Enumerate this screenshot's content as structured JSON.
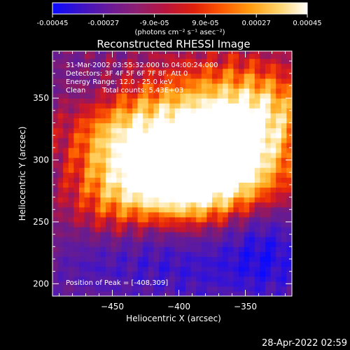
{
  "colorbar": {
    "ticks": [
      "-0.00045",
      "-0.00027",
      "-9.0e-05",
      "9.0e-05",
      "0.00027",
      "0.00045"
    ],
    "units": "(photons cm⁻² s⁻¹ asec⁻²)",
    "palette": [
      "#0a0aff",
      "#3b13c8",
      "#6a1a9a",
      "#8f1f70",
      "#b8143c",
      "#e0200a",
      "#ff5a00",
      "#ff9d10",
      "#ffd46a",
      "#ffffff"
    ]
  },
  "chart_data": {
    "type": "heatmap",
    "title": "Reconstructed RHESSI Image",
    "xlabel": "Heliocentric X (arcsec)",
    "ylabel": "Heliocentric Y (arcsec)",
    "xlim": [
      -495,
      -315
    ],
    "ylim": [
      190,
      388
    ],
    "xticks": [
      -450,
      -400,
      -350
    ],
    "yticks": [
      200,
      250,
      300,
      350
    ],
    "color_range": [
      -0.00045,
      0.00045
    ],
    "peak": {
      "x": -408,
      "y": 309
    },
    "annotations": {
      "time_range": "31-Mar-2002 03:55:32.000 to 04:00:24.000",
      "detectors": "Detectors: 3F 4F 5F 6F 7F 8F, Att 0",
      "energy": "Energy Range: 12.0 - 25.0 keV",
      "method": "Clean",
      "counts": "Total counts: 5.43E+03",
      "peak_label": "Position of Peak = [-408,309]"
    }
  },
  "footer": {
    "timestamp": "28-Apr-2022 02:59"
  }
}
